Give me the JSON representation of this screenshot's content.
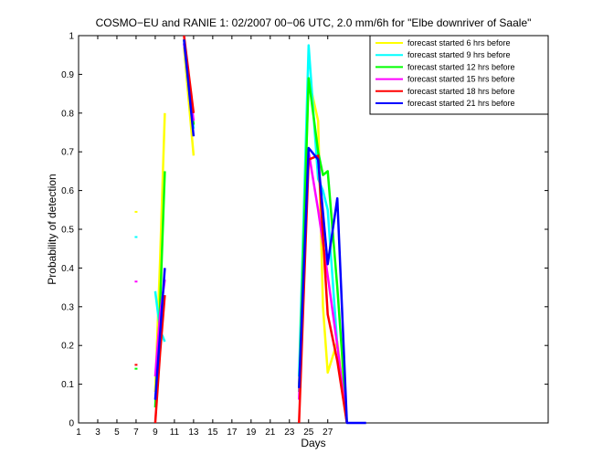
{
  "chart_data": {
    "type": "line",
    "title": "COSMO−EU and RANIE 1: 02/2007 00−06 UTC, 2.0 mm/6h for \"Elbe downriver of Saale\"",
    "xlabel": "Days",
    "ylabel": "Probability of detection",
    "xlim": [
      1,
      50
    ],
    "ylim": [
      0,
      1
    ],
    "xticks": [
      1,
      3,
      5,
      7,
      9,
      11,
      13,
      15,
      17,
      19,
      21,
      23,
      25,
      27
    ],
    "yticks": [
      0,
      0.1,
      0.2,
      0.3,
      0.4,
      0.5,
      0.6,
      0.7,
      0.8,
      0.9,
      1
    ],
    "ytick_labels": [
      "0",
      "0.1",
      "0.2",
      "0.3",
      "0.4",
      "0.5",
      "0.6",
      "0.7",
      "0.8",
      "0.9",
      "1"
    ],
    "grid": false,
    "legend_position": "top-right",
    "series": [
      {
        "name": "forecast started 6 hrs before",
        "color": "#ffff00",
        "segments": [
          [
            [
              7,
              0.545
            ]
          ],
          [
            [
              9,
              0.08
            ],
            [
              9.5,
              0.42
            ],
            [
              10,
              0.8
            ]
          ],
          [
            [
              12,
              0.97
            ],
            [
              13,
              0.69
            ]
          ],
          [
            [
              24,
              0.1
            ],
            [
              25,
              0.89
            ],
            [
              26,
              0.78
            ],
            [
              26.5,
              0.3
            ],
            [
              27,
              0.13
            ],
            [
              28,
              0.21
            ],
            [
              29,
              0.0
            ]
          ]
        ]
      },
      {
        "name": "forecast started 9 hrs before",
        "color": "#00ffff",
        "segments": [
          [
            [
              7,
              0.48
            ]
          ],
          [
            [
              9,
              0.34
            ],
            [
              9.5,
              0.24
            ],
            [
              10,
              0.21
            ]
          ],
          [
            [
              12,
              0.98
            ],
            [
              13,
              0.76
            ]
          ],
          [
            [
              24,
              0.12
            ],
            [
              25,
              0.975
            ],
            [
              26,
              0.63
            ],
            [
              26.5,
              0.6
            ],
            [
              27,
              0.55
            ],
            [
              28,
              0.2
            ],
            [
              29,
              0.0
            ]
          ]
        ]
      },
      {
        "name": "forecast started 12 hrs before",
        "color": "#00ff00",
        "segments": [
          [
            [
              7,
              0.14
            ]
          ],
          [
            [
              9,
              0.04
            ],
            [
              9.5,
              0.3
            ],
            [
              10,
              0.65
            ]
          ],
          [
            [
              12,
              0.99
            ],
            [
              13,
              0.77
            ]
          ],
          [
            [
              24,
              0.08
            ],
            [
              25,
              0.89
            ],
            [
              26,
              0.7
            ],
            [
              26.5,
              0.64
            ],
            [
              27,
              0.65
            ],
            [
              28,
              0.35
            ],
            [
              29,
              0.0
            ]
          ]
        ]
      },
      {
        "name": "forecast started 15 hrs before",
        "color": "#ff00ff",
        "segments": [
          [
            [
              7,
              0.365
            ]
          ],
          [
            [
              9,
              0.12
            ],
            [
              9.5,
              0.28
            ],
            [
              10,
              0.37
            ]
          ],
          [
            [
              12,
              0.98
            ],
            [
              13,
              0.78
            ]
          ],
          [
            [
              24,
              0.06
            ],
            [
              25,
              0.7
            ],
            [
              26,
              0.55
            ],
            [
              27,
              0.38
            ],
            [
              28,
              0.2
            ],
            [
              29,
              0.0
            ]
          ]
        ]
      },
      {
        "name": "forecast started 18 hrs before",
        "color": "#ff0000",
        "segments": [
          [
            [
              7,
              0.15
            ]
          ],
          [
            [
              9,
              0.0
            ],
            [
              9.5,
              0.18
            ],
            [
              10,
              0.33
            ]
          ],
          [
            [
              12,
              1.0
            ],
            [
              13,
              0.8
            ]
          ],
          [
            [
              24,
              0.0
            ],
            [
              25,
              0.68
            ],
            [
              26,
              0.69
            ],
            [
              27,
              0.28
            ],
            [
              28,
              0.16
            ],
            [
              29,
              0.0
            ]
          ]
        ]
      },
      {
        "name": "forecast started 21 hrs before",
        "color": "#0000ff",
        "segments": [
          [
            [
              9,
              0.06
            ],
            [
              9.5,
              0.23
            ],
            [
              10,
              0.4
            ]
          ],
          [
            [
              12,
              0.99
            ],
            [
              13,
              0.74
            ]
          ],
          [
            [
              24,
              0.09
            ],
            [
              25,
              0.71
            ],
            [
              26,
              0.68
            ],
            [
              27,
              0.41
            ],
            [
              28,
              0.58
            ],
            [
              29,
              0.0
            ],
            [
              31,
              0.0
            ]
          ]
        ]
      }
    ]
  }
}
